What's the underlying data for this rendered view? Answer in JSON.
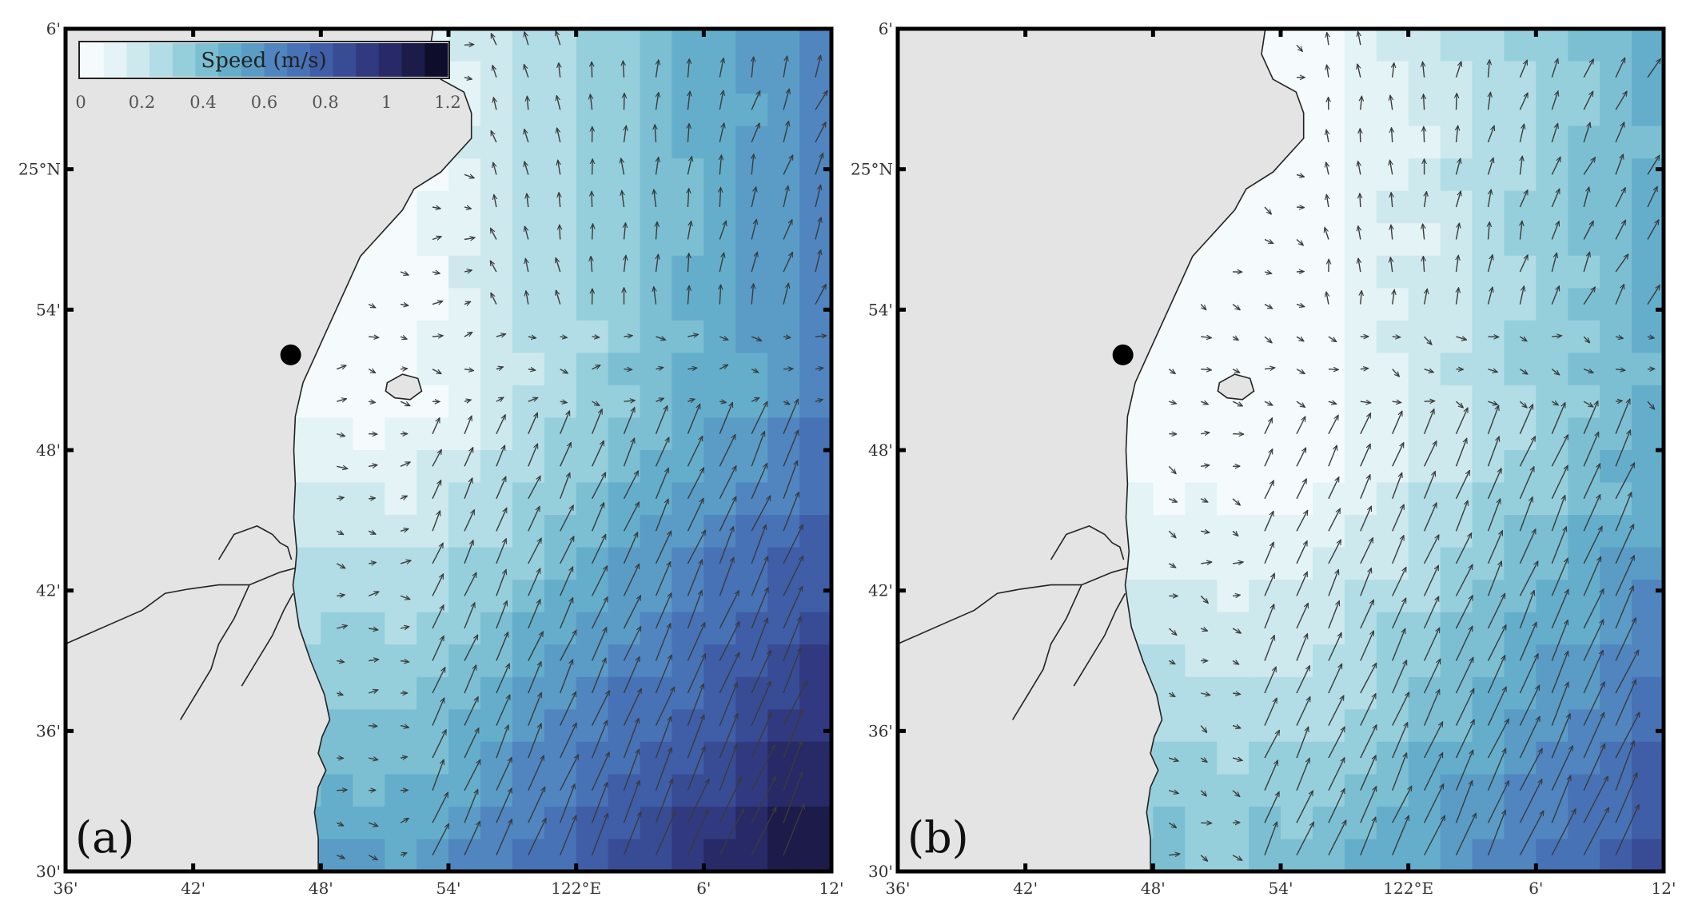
{
  "figure": {
    "colorbar": {
      "title": "Speed (m/s)",
      "ticks": [
        "0",
        "0.2",
        "0.4",
        "0.6",
        "0.8",
        "1",
        "1.2"
      ],
      "min": 0,
      "max": 1.2,
      "colors": [
        "#f5fbfc",
        "#e3f3f6",
        "#cde9ee",
        "#b2dde6",
        "#96cfdc",
        "#7cbfd3",
        "#65aecb",
        "#5a9cc6",
        "#5085c0",
        "#4872b6",
        "#3f5ea7",
        "#384c96",
        "#313a80",
        "#272a66",
        "#1c1b4a",
        "#0f0d2c"
      ]
    },
    "land_color": "#e4e4e4",
    "coast_color": "#222222",
    "arrow_color": "#3a3a3a",
    "lon_ticks": [
      "36'",
      "42'",
      "48'",
      "54'",
      "122°E",
      "6'",
      "12'"
    ],
    "lat_ticks": [
      "6'",
      "25°N",
      "54'",
      "48'",
      "42'",
      "36'",
      "30'"
    ],
    "station_marker": "filled-circle",
    "panels": [
      {
        "id": "a",
        "label": "(a)"
      },
      {
        "id": "b",
        "label": "(b)"
      }
    ]
  }
}
